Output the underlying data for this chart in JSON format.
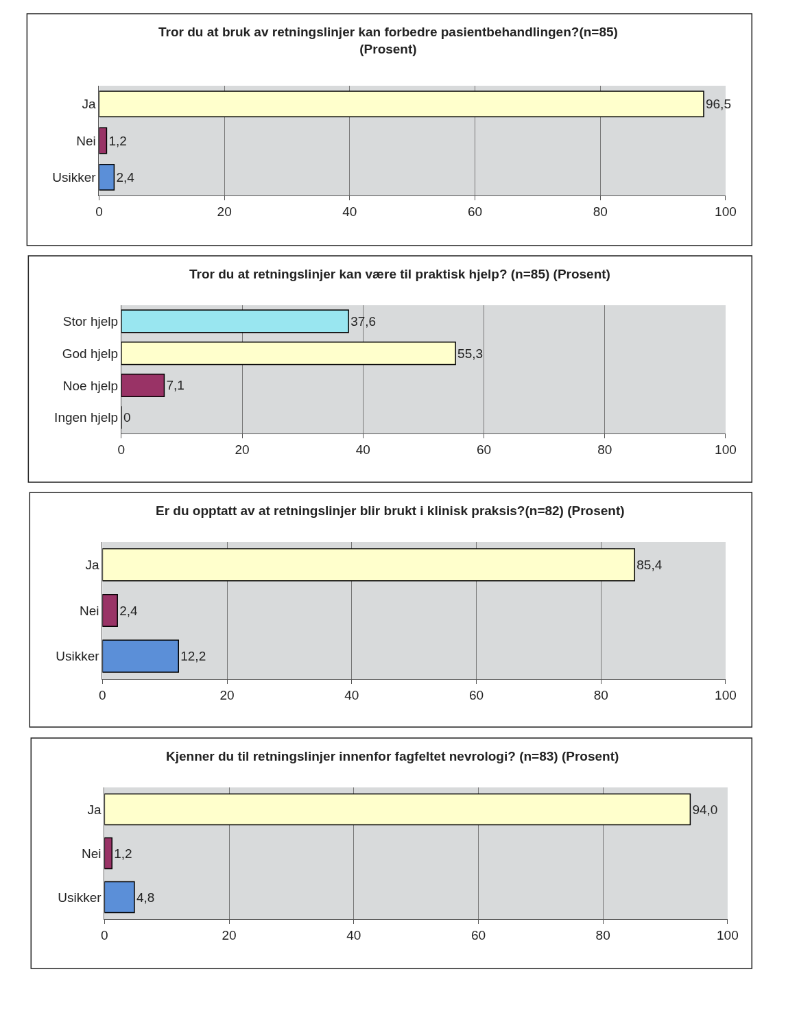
{
  "chart_data": [
    {
      "type": "bar",
      "orientation": "horizontal",
      "title": "Tror du at bruk av retningslinjer kan forbedre pasientbehandlingen?(n=85)\n(Prosent)",
      "categories": [
        "Ja",
        "Nei",
        "Usikker"
      ],
      "values": [
        96.5,
        1.2,
        2.4
      ],
      "colors": [
        "#ffffcc",
        "#993366",
        "#5b8fd8"
      ],
      "value_labels": [
        "96,5",
        "1,2",
        "2,4"
      ],
      "xlim": [
        0,
        100
      ],
      "xticks": [
        0,
        20,
        40,
        60,
        80,
        100
      ],
      "grid": "x"
    },
    {
      "type": "bar",
      "orientation": "horizontal",
      "title": "Tror du at retningslinjer kan være til praktisk hjelp? (n=85) (Prosent)",
      "categories": [
        "Stor hjelp",
        "God hjelp",
        "Noe hjelp",
        "Ingen hjelp"
      ],
      "values": [
        37.6,
        55.3,
        7.1,
        0
      ],
      "colors": [
        "#99e6f0",
        "#ffffcc",
        "#993366",
        "#000000"
      ],
      "value_labels": [
        "37,6",
        "55,3",
        "7,1",
        "0"
      ],
      "xlim": [
        0,
        100
      ],
      "xticks": [
        0,
        20,
        40,
        60,
        80,
        100
      ],
      "grid": "x"
    },
    {
      "type": "bar",
      "orientation": "horizontal",
      "title": "Er du opptatt av at retningslinjer blir brukt i klinisk praksis?(n=82) (Prosent)",
      "categories": [
        "Ja",
        "Nei",
        "Usikker"
      ],
      "values": [
        85.4,
        2.4,
        12.2
      ],
      "colors": [
        "#ffffcc",
        "#993366",
        "#5b8fd8"
      ],
      "value_labels": [
        "85,4",
        "2,4",
        "12,2"
      ],
      "xlim": [
        0,
        100
      ],
      "xticks": [
        0,
        20,
        40,
        60,
        80,
        100
      ],
      "grid": "x"
    },
    {
      "type": "bar",
      "orientation": "horizontal",
      "title": "Kjenner du til retningslinjer innenfor fagfeltet nevrologi? (n=83) (Prosent)",
      "categories": [
        "Ja",
        "Nei",
        "Usikker"
      ],
      "values": [
        94.0,
        1.2,
        4.8
      ],
      "colors": [
        "#ffffcc",
        "#993366",
        "#5b8fd8"
      ],
      "value_labels": [
        "94,0",
        "1,2",
        "4,8"
      ],
      "xlim": [
        0,
        100
      ],
      "xticks": [
        0,
        20,
        40,
        60,
        80,
        100
      ],
      "grid": "x"
    }
  ]
}
